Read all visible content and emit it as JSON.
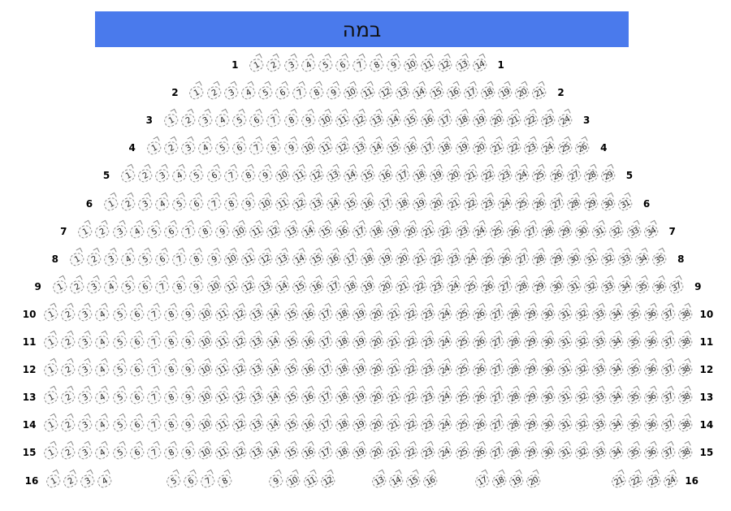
{
  "stage": {
    "label": "במה",
    "color": "#4a7aec"
  },
  "rows": [
    {
      "label": "1",
      "seat_count": 14
    },
    {
      "label": "2",
      "seat_count": 21
    },
    {
      "label": "3",
      "seat_count": 24
    },
    {
      "label": "4",
      "seat_count": 26
    },
    {
      "label": "5",
      "seat_count": 29
    },
    {
      "label": "6",
      "seat_count": 31
    },
    {
      "label": "7",
      "seat_count": 34
    },
    {
      "label": "8",
      "seat_count": 35
    },
    {
      "label": "9",
      "seat_count": 37
    },
    {
      "label": "10",
      "seat_count": 38
    },
    {
      "label": "11",
      "seat_count": 38
    },
    {
      "label": "12",
      "seat_count": 38
    },
    {
      "label": "13",
      "seat_count": 38
    },
    {
      "label": "14",
      "seat_count": 38
    },
    {
      "label": "15",
      "seat_count": 38
    },
    {
      "label": "16",
      "seat_groups": [
        [
          "1",
          "2",
          "3",
          "4"
        ],
        [
          "5",
          "6",
          "7",
          "8"
        ],
        [
          "9",
          "10",
          "11",
          "12"
        ],
        [
          "13",
          "14",
          "15",
          "16"
        ],
        [
          "17",
          "18",
          "19",
          "20"
        ],
        [
          "21",
          "22",
          "23",
          "24"
        ]
      ]
    }
  ]
}
